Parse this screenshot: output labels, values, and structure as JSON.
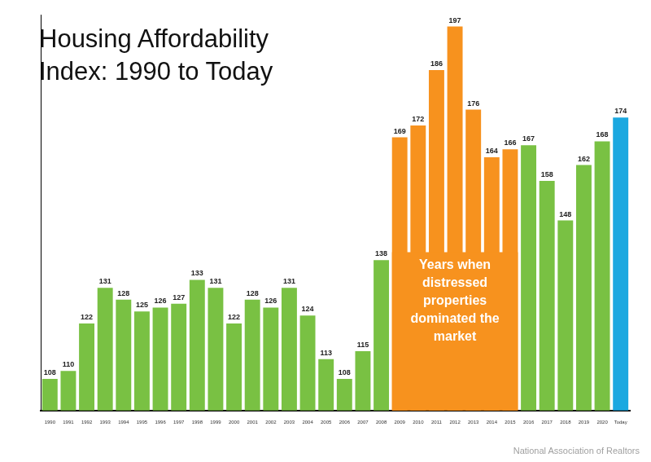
{
  "chart_data": {
    "type": "bar",
    "title": "Housing Affordability Index: 1990 to Today",
    "annotations": [
      "Years when distressed properties dominated the market"
    ],
    "source": "National Association of Realtors",
    "categories": [
      "1990",
      "1991",
      "1992",
      "1993",
      "1994",
      "1995",
      "1996",
      "1997",
      "1998",
      "1999",
      "2000",
      "2001",
      "2002",
      "2003",
      "2004",
      "2005",
      "2006",
      "2007",
      "2008",
      "2009",
      "2010",
      "2011",
      "2012",
      "2013",
      "2014",
      "2015",
      "2016",
      "2017",
      "2018",
      "2019",
      "2020",
      "Today"
    ],
    "values": [
      108,
      110,
      122,
      131,
      128,
      125,
      126,
      127,
      133,
      131,
      122,
      128,
      126,
      131,
      124,
      113,
      108,
      115,
      138,
      169,
      172,
      186,
      197,
      176,
      164,
      166,
      167,
      158,
      148,
      162,
      168,
      174
    ],
    "colors": [
      "#79c143",
      "#79c143",
      "#79c143",
      "#79c143",
      "#79c143",
      "#79c143",
      "#79c143",
      "#79c143",
      "#79c143",
      "#79c143",
      "#79c143",
      "#79c143",
      "#79c143",
      "#79c143",
      "#79c143",
      "#79c143",
      "#79c143",
      "#79c143",
      "#79c143",
      "#f7921e",
      "#f7921e",
      "#f7921e",
      "#f7921e",
      "#f7921e",
      "#f7921e",
      "#f7921e",
      "#79c143",
      "#79c143",
      "#79c143",
      "#79c143",
      "#79c143",
      "#1ba8e0"
    ],
    "ylim": [
      100,
      200
    ],
    "grid": false,
    "data_labels": true,
    "tick_labels": "x"
  }
}
